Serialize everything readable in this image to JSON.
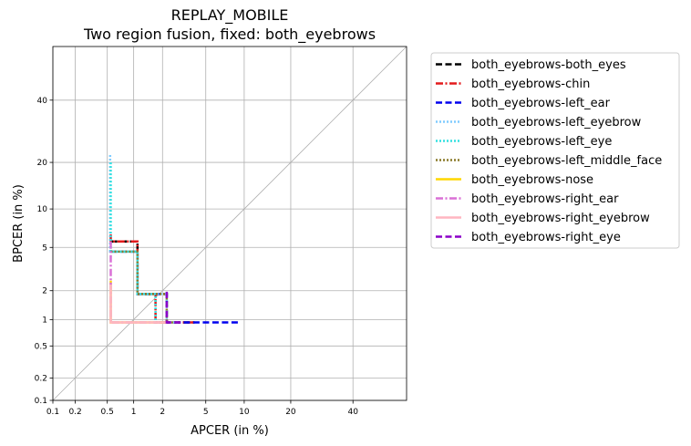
{
  "chart_data": {
    "type": "line",
    "title": "REPLAY_MOBILE",
    "subtitle": "Two region fusion, fixed: both_eyebrows",
    "xlabel": "APCER (in %)",
    "ylabel": "BPCER (in %)",
    "x_scale": "probit",
    "y_scale": "probit",
    "xlim": [
      0.1,
      60
    ],
    "ylim": [
      0.1,
      60
    ],
    "x_ticks": [
      0.1,
      0.2,
      0.5,
      1,
      2,
      5,
      10,
      20,
      40
    ],
    "y_ticks": [
      0.1,
      0.2,
      0.5,
      1,
      2,
      5,
      10,
      20,
      40
    ],
    "x_tick_labels": [
      "0.1",
      "0.2",
      "0.5",
      "1",
      "2",
      "5",
      "10",
      "20",
      "40"
    ],
    "y_tick_labels": [
      "0.1",
      "0.2",
      "0.5",
      "1",
      "2",
      "5",
      "10",
      "20",
      "40"
    ],
    "grid": true,
    "diagonal_reference": true,
    "legend_position": "outside-right",
    "series": [
      {
        "name": "both_eyebrows-both_eyes",
        "color": "#000000",
        "dash": "7,3.5",
        "width": 2.5,
        "points": [
          [
            0.55,
            5.6
          ],
          [
            1.1,
            5.6
          ],
          [
            1.1,
            1.85
          ],
          [
            2.2,
            1.85
          ],
          [
            2.2,
            0.93
          ],
          [
            4.0,
            0.93
          ]
        ]
      },
      {
        "name": "both_eyebrows-chin",
        "color": "#e31a1c",
        "dash": "8,2.5,2,2.5",
        "width": 2.5,
        "points": [
          [
            0.55,
            6.4
          ],
          [
            0.55,
            5.6
          ],
          [
            1.1,
            5.6
          ],
          [
            1.1,
            1.85
          ],
          [
            1.7,
            1.85
          ],
          [
            1.7,
            1.0
          ],
          [
            1.7,
            0.93
          ],
          [
            4.0,
            0.93
          ]
        ]
      },
      {
        "name": "both_eyebrows-left_ear",
        "color": "#0000ee",
        "dash": "7,3.5",
        "width": 2.5,
        "points": [
          [
            0.55,
            4.6
          ],
          [
            1.1,
            4.6
          ],
          [
            1.1,
            1.85
          ],
          [
            2.2,
            1.85
          ],
          [
            2.2,
            0.93
          ],
          [
            9.0,
            0.93
          ]
        ]
      },
      {
        "name": "both_eyebrows-left_eyebrow",
        "color": "#80ccff",
        "dash": "2,2",
        "width": 2.5,
        "points": [
          [
            0.54,
            22
          ],
          [
            0.54,
            4.6
          ],
          [
            1.1,
            4.6
          ],
          [
            1.1,
            1.85
          ],
          [
            2.2,
            1.85
          ],
          [
            2.2,
            0.93
          ],
          [
            3.0,
            0.93
          ]
        ]
      },
      {
        "name": "both_eyebrows-left_eye",
        "color": "#33e0e0",
        "dash": "2,2",
        "width": 2.5,
        "points": [
          [
            0.55,
            20
          ],
          [
            0.55,
            4.6
          ],
          [
            1.1,
            4.6
          ],
          [
            1.1,
            1.85
          ],
          [
            1.7,
            1.85
          ],
          [
            1.7,
            0.93
          ],
          [
            2.2,
            0.93
          ]
        ]
      },
      {
        "name": "both_eyebrows-left_middle_face",
        "color": "#8a7a2a",
        "dash": "2,2",
        "width": 2.5,
        "points": [
          [
            0.55,
            4.6
          ],
          [
            1.1,
            4.6
          ],
          [
            1.1,
            1.85
          ],
          [
            2.2,
            1.85
          ],
          [
            2.2,
            0.93
          ],
          [
            3.0,
            0.93
          ]
        ]
      },
      {
        "name": "both_eyebrows-nose",
        "color": "#ffd700",
        "dash": "",
        "width": 2.5,
        "points": [
          [
            0.55,
            2.5
          ],
          [
            0.55,
            0.93
          ],
          [
            2.2,
            0.93
          ]
        ]
      },
      {
        "name": "both_eyebrows-right_ear",
        "color": "#da70d6",
        "dash": "8,2.5,2,2.5",
        "width": 2.5,
        "points": [
          [
            0.55,
            5.6
          ],
          [
            0.55,
            2.5
          ],
          [
            0.55,
            0.93
          ],
          [
            2.2,
            0.93
          ]
        ]
      },
      {
        "name": "both_eyebrows-right_eyebrow",
        "color": "#ffb6c1",
        "dash": "",
        "width": 2.5,
        "points": [
          [
            0.55,
            2.3
          ],
          [
            0.55,
            0.93
          ],
          [
            2.2,
            0.93
          ]
        ]
      },
      {
        "name": "both_eyebrows-right_eye",
        "color": "#8b00c8",
        "dash": "7,3.5",
        "width": 2.5,
        "points": [
          [
            2.2,
            1.95
          ],
          [
            2.2,
            0.93
          ],
          [
            3.0,
            0.93
          ]
        ]
      }
    ]
  }
}
